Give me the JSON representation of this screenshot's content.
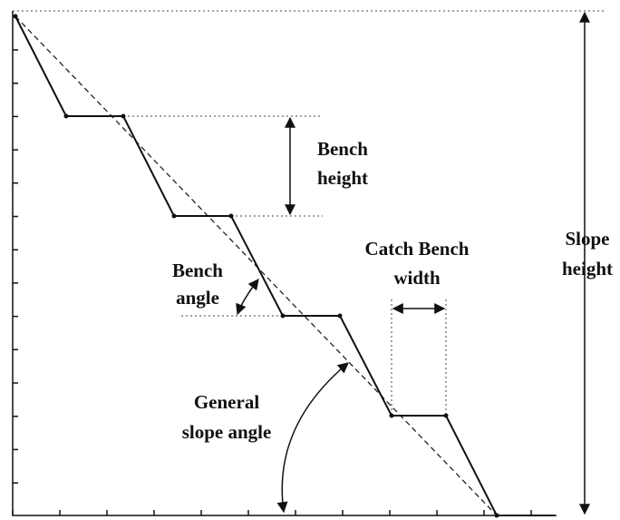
{
  "labels": {
    "bench_height": [
      "Bench",
      "height"
    ],
    "catch_bench_width": [
      "Catch Bench",
      "width"
    ],
    "bench_angle": [
      "Bench",
      "angle"
    ],
    "general_slope_angle": [
      "General",
      "slope angle"
    ],
    "slope_height": [
      "Slope",
      "height"
    ]
  }
}
